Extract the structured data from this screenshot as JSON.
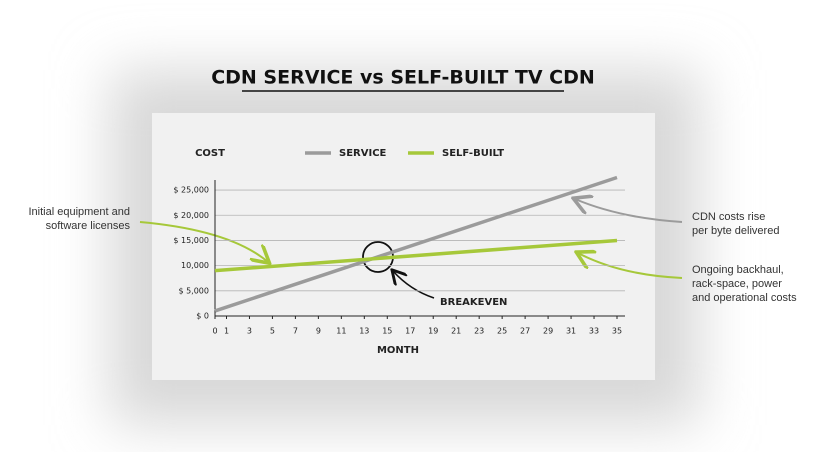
{
  "chart_data": {
    "type": "line",
    "title": "CDN SERVICE vs SELF-BUILT TV CDN",
    "y_label": "COST",
    "x_label": "MONTH",
    "x": [
      0,
      35
    ],
    "series": [
      {
        "name": "SERVICE",
        "color": "#9b9b9b",
        "values": [
          1000,
          27500
        ]
      },
      {
        "name": "SELF-BUILT",
        "color": "#a6c83a",
        "values": [
          9000,
          15000
        ]
      }
    ],
    "xlim": [
      0,
      35
    ],
    "xticks": [
      0,
      1,
      3,
      5,
      7,
      9,
      11,
      13,
      15,
      17,
      19,
      21,
      23,
      25,
      27,
      29,
      31,
      33,
      35
    ],
    "ylim": [
      0,
      27000
    ],
    "yticks": [
      {
        "value": 0,
        "label": "$ 0"
      },
      {
        "value": 5000,
        "label": "$ 5,000"
      },
      {
        "value": 10000,
        "label": "10,000"
      },
      {
        "value": 15000,
        "label": "$ 15,000"
      },
      {
        "value": 20000,
        "label": "$ 20,000"
      },
      {
        "value": 25000,
        "label": "$ 25,000"
      }
    ],
    "grid": true,
    "breakeven_label": "BREAKEVEN",
    "annotations": [
      {
        "lines": [
          "Initial equipment and",
          "software licenses"
        ]
      },
      {
        "lines": [
          "CDN costs rise",
          "per byte delivered"
        ]
      },
      {
        "lines": [
          "Ongoing backhaul,",
          "rack-space, power",
          "and operational costs"
        ]
      }
    ]
  }
}
